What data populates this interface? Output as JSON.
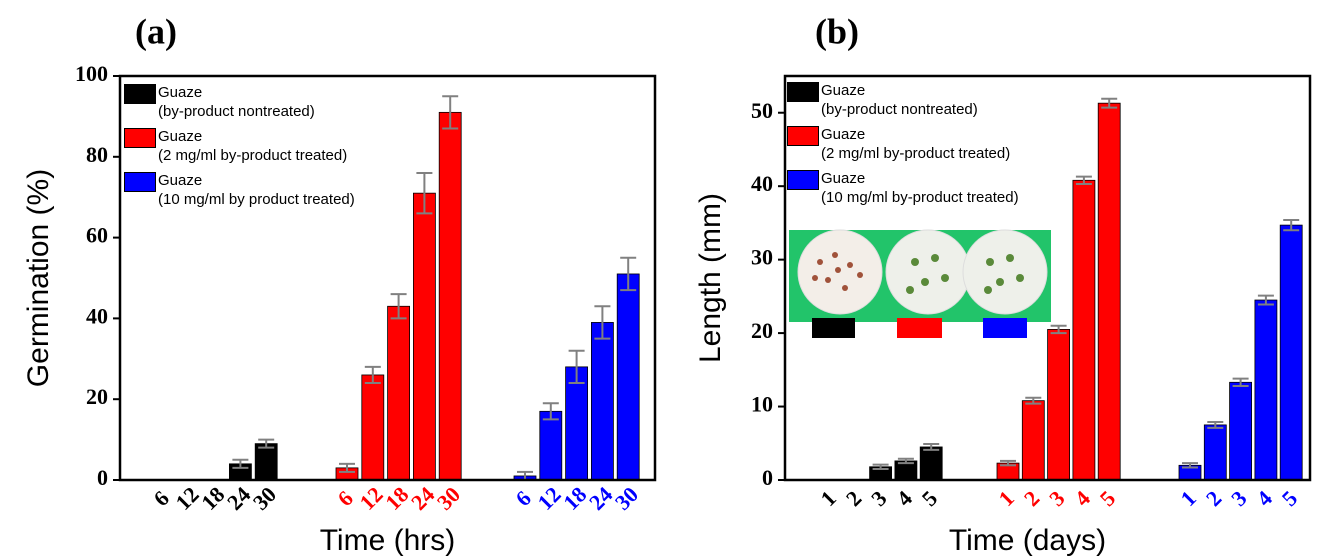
{
  "chart_data": [
    {
      "type": "bar",
      "title": "(a)",
      "y_label": "Germination (%)",
      "x_label": "Time (hrs)",
      "ylim": [
        0,
        100
      ],
      "yticks": [
        0,
        20,
        40,
        60,
        80,
        100
      ],
      "series": [
        {
          "name": "Guaze\n(by-product nontreated)",
          "color": "#000000",
          "categories": [
            "6",
            "12",
            "18",
            "24",
            "30"
          ],
          "values": [
            0,
            0,
            0,
            4,
            9
          ],
          "errors": [
            0,
            0,
            0,
            1,
            1
          ]
        },
        {
          "name": "Guaze\n(2 mg/ml by-product treated)",
          "color": "#ff0000",
          "categories": [
            "6",
            "12",
            "18",
            "24",
            "30"
          ],
          "values": [
            3,
            26,
            43,
            71,
            91
          ],
          "errors": [
            1,
            2,
            3,
            5,
            4
          ]
        },
        {
          "name": "Guaze\n(10 mg/ml by product treated)",
          "color": "#0000ff",
          "categories": [
            "6",
            "12",
            "18",
            "24",
            "30"
          ],
          "values": [
            1,
            17,
            28,
            39,
            51
          ],
          "errors": [
            1,
            2,
            4,
            4,
            4
          ]
        }
      ]
    },
    {
      "type": "bar",
      "title": "(b)",
      "y_label": "Length (mm)",
      "x_label": "Time (days)",
      "ylim": [
        0,
        55
      ],
      "yticks": [
        0,
        10,
        20,
        30,
        40,
        50
      ],
      "series": [
        {
          "name": "Guaze\n(by-product nontreated)",
          "color": "#000000",
          "categories": [
            "1",
            "2",
            "3",
            "4",
            "5"
          ],
          "values": [
            0,
            0,
            1.8,
            2.6,
            4.5
          ],
          "errors": [
            0,
            0,
            0.3,
            0.3,
            0.4
          ]
        },
        {
          "name": "Guaze\n(2 mg/ml by-product treated)",
          "color": "#ff0000",
          "categories": [
            "1",
            "2",
            "3",
            "4",
            "5"
          ],
          "values": [
            2.3,
            10.8,
            20.5,
            40.8,
            51.3
          ],
          "errors": [
            0.3,
            0.4,
            0.5,
            0.5,
            0.6
          ]
        },
        {
          "name": "Guaze\n(10 mg/ml by-product treated)",
          "color": "#0000ff",
          "categories": [
            "1",
            "2",
            "3",
            "4",
            "5"
          ],
          "values": [
            2,
            7.5,
            13.3,
            24.5,
            34.7
          ],
          "errors": [
            0.3,
            0.4,
            0.5,
            0.6,
            0.7
          ]
        }
      ]
    }
  ]
}
